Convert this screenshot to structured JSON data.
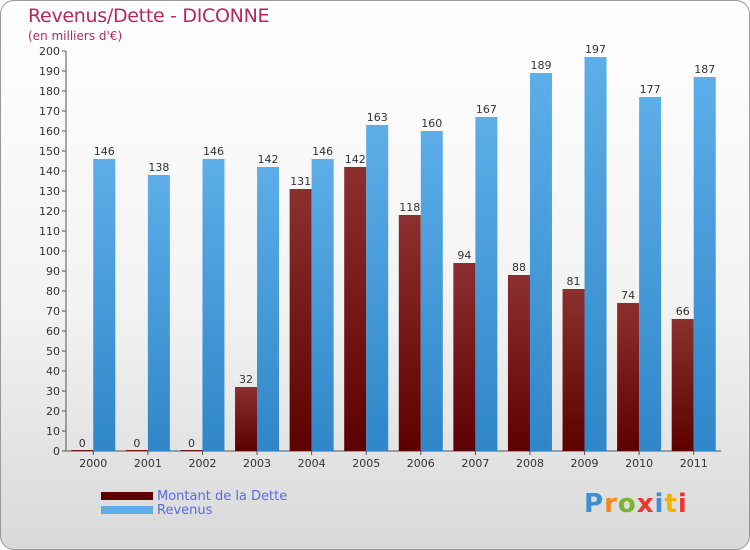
{
  "title": "Revenus/Dette - DICONNE",
  "subtitle": "(en milliers d'€)",
  "colors": {
    "title": "#b5285e",
    "dette_top": "#8b2f2f",
    "dette_bottom": "#5c0000",
    "revenus_top": "#5daee8",
    "revenus_bottom": "#2f86c8"
  },
  "chart_data": {
    "type": "bar",
    "title": "Revenus/Dette - DICONNE",
    "ylabel": "(en milliers d'€)",
    "xlabel": "",
    "ylim": [
      0,
      200
    ],
    "ytick_step": 10,
    "grid": false,
    "categories": [
      "2000",
      "2001",
      "2002",
      "2003",
      "2004",
      "2005",
      "2006",
      "2007",
      "2008",
      "2009",
      "2010",
      "2011"
    ],
    "series": [
      {
        "name": "Montant de la Dette",
        "values": [
          0,
          0,
          0,
          32,
          131,
          142,
          118,
          94,
          88,
          81,
          74,
          66
        ]
      },
      {
        "name": "Revenus",
        "values": [
          146,
          138,
          146,
          142,
          146,
          163,
          160,
          167,
          189,
          197,
          177,
          187
        ]
      }
    ]
  },
  "legend": {
    "items": [
      {
        "label": "Montant de la Dette"
      },
      {
        "label": "Revenus"
      }
    ]
  },
  "logo": {
    "text": "Proxiti"
  }
}
